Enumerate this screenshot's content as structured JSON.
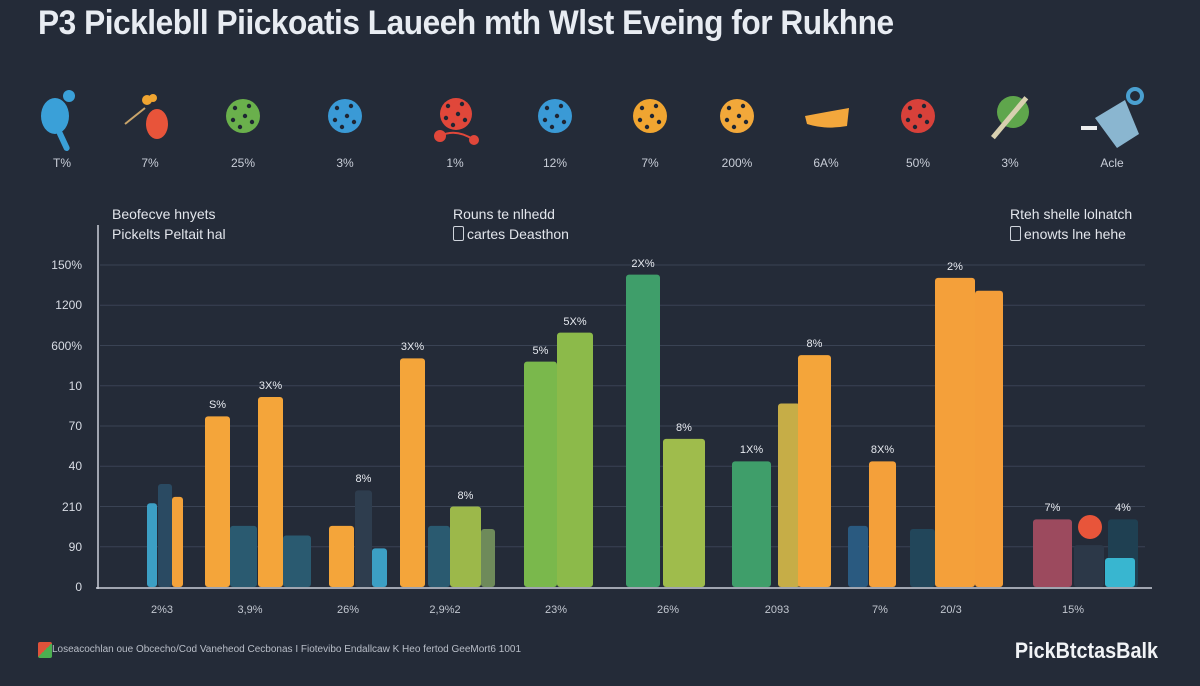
{
  "title": "P3  Picklebll Piickoatis Laueeh mth Wlst Eveing for Rukhne",
  "icons": [
    {
      "name": "paddle-icon",
      "label": "T%",
      "color": "#3aa0d8"
    },
    {
      "name": "paddle-balls-icon",
      "label": "7%",
      "color": "#e8543a"
    },
    {
      "name": "green-ball-icon",
      "label": "25%",
      "color": "#6ab04c"
    },
    {
      "name": "blue-ball-icon",
      "label": "3%",
      "color": "#3a9ad6"
    },
    {
      "name": "red-ball-paddle-icon",
      "label": "1%",
      "color": "#e0473a"
    },
    {
      "name": "blue-ball-icon",
      "label": "12%",
      "color": "#3a9ad6"
    },
    {
      "name": "yellow-ball-icon",
      "label": "7%",
      "color": "#f0a531"
    },
    {
      "name": "orange-ball-icon",
      "label": "200%",
      "color": "#f2a83a"
    },
    {
      "name": "shoe-icon",
      "label": "6A%",
      "color": "#f3a73c"
    },
    {
      "name": "red-ball-icon",
      "label": "50%",
      "color": "#d8413a"
    },
    {
      "name": "green-ball-stick-icon",
      "label": "3%",
      "color": "#5fa64c"
    },
    {
      "name": "bag-icon",
      "label": "Acle",
      "color": "#8ab6d0"
    }
  ],
  "legends": [
    {
      "line1": "Beofecve hnyets",
      "line2": "Pickelts Peltait hal",
      "box": false
    },
    {
      "line1": "Rouns te nlhedd",
      "line2": "cartes Deasthon",
      "box": true
    },
    {
      "line1": "Rteh shelle lolnatch",
      "line2": "enowts lne hehe",
      "box": true
    }
  ],
  "chart_data": {
    "type": "bar",
    "title": "",
    "yticks": [
      "0",
      "90",
      "210",
      "40",
      "70",
      "10",
      "600%",
      "1200",
      "150%"
    ],
    "xticks": [
      "2%3",
      "3,9%",
      "26%",
      "2,9%2",
      "23%",
      "26%",
      "2093",
      "7%",
      "20/3",
      "15%"
    ],
    "ylim": [
      0,
      100
    ],
    "grid": true,
    "bars": [
      {
        "value": 26,
        "color": "#3c9fc4"
      },
      {
        "value": 32,
        "color": "#2a4a62"
      },
      {
        "value": 28,
        "color": "#f3a23a"
      },
      {
        "value": 53,
        "color": "#f4a53a",
        "label": "S%"
      },
      {
        "value": 19,
        "color": "#2a5a70"
      },
      {
        "value": 59,
        "color": "#f4a53a",
        "label": "3X%"
      },
      {
        "value": 16,
        "color": "#2a5a70"
      },
      {
        "value": 19,
        "color": "#f4a53a"
      },
      {
        "value": 30,
        "color": "#2e3d4e",
        "label": "8%"
      },
      {
        "value": 12,
        "color": "#3c9fc4"
      },
      {
        "value": 71,
        "color": "#f4a53a",
        "label": "3X%"
      },
      {
        "value": 19,
        "color": "#2a5a70"
      },
      {
        "value": 25,
        "color": "#9cb84a",
        "label": "8%"
      },
      {
        "value": 18,
        "color": "#6e8a5a"
      },
      {
        "value": 70,
        "color": "#7ab84c",
        "label": "5%"
      },
      {
        "value": 79,
        "color": "#8cba4a",
        "label": "5X%"
      },
      {
        "value": 97,
        "color": "#3f9e6a",
        "label": "2X%"
      },
      {
        "value": 46,
        "color": "#9fbc4c",
        "label": "8%"
      },
      {
        "value": 39,
        "color": "#3f9e6a",
        "label": "1X%"
      },
      {
        "value": 57,
        "color": "#c6ad47"
      },
      {
        "value": 72,
        "color": "#f4a53a",
        "label": "8%"
      },
      {
        "value": 19,
        "color": "#2a5a80"
      },
      {
        "value": 39,
        "color": "#f4a03a",
        "label": "8X%"
      },
      {
        "value": 18,
        "color": "#22465a"
      },
      {
        "value": 96,
        "color": "#f4a03a",
        "label": "2%"
      },
      {
        "value": 92,
        "color": "#f49e3a"
      },
      {
        "value": 21,
        "color": "#9c4a5e",
        "label": "7%"
      },
      {
        "value": 13,
        "color": "#2c3848"
      },
      {
        "value": 21,
        "color": "#1f4052",
        "label": "4%"
      },
      {
        "value": 9,
        "color": "#38b6d0"
      }
    ],
    "marker": {
      "color": "#e8553a"
    }
  },
  "footer": {
    "note": "Loseacochlan oue Obcecho/Cod Vaneheod  Cecbonas  I Fiotevibo Endallcaw  K Heo fertod GeeMort6 1001",
    "brand": "PickBtctasBalk"
  }
}
